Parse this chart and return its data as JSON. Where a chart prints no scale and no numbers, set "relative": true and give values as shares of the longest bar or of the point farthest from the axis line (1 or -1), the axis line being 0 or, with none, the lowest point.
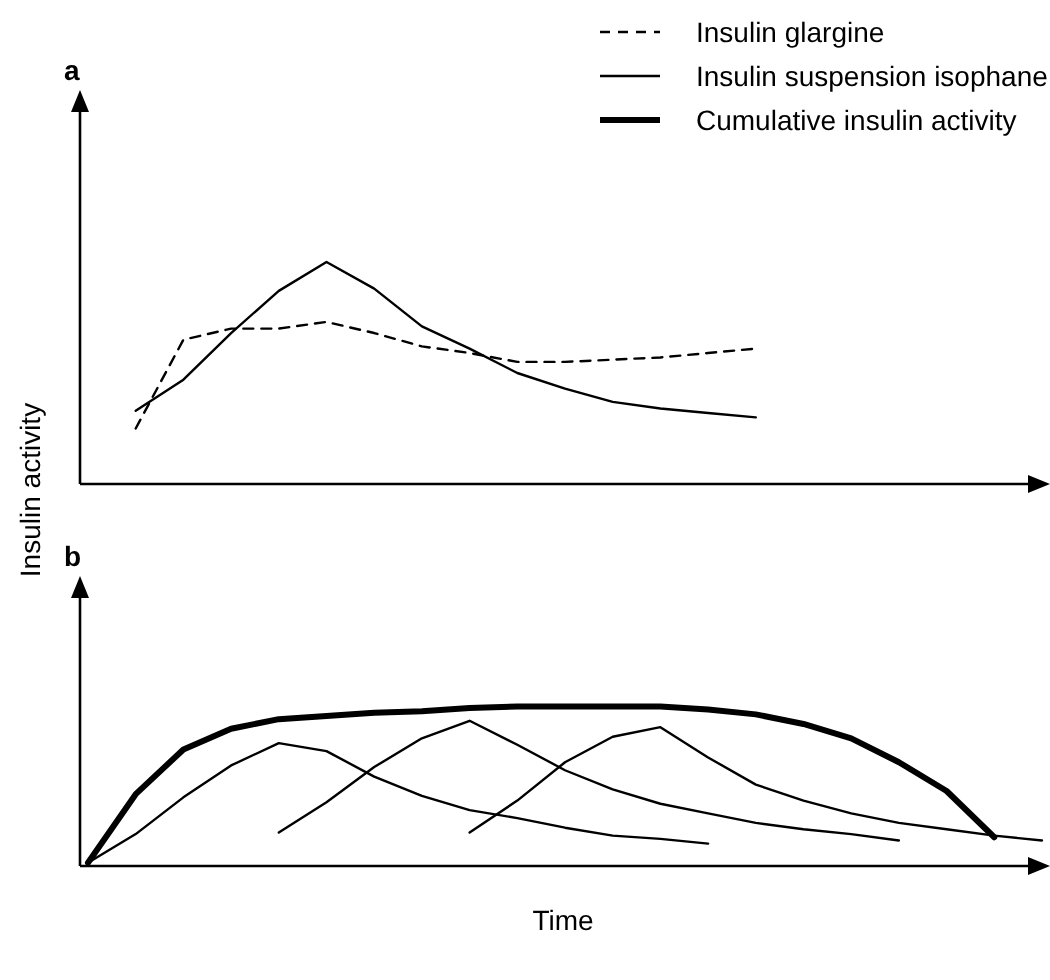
{
  "chart_data": [
    {
      "type": "line",
      "title": "a",
      "ylabel": "Insulin activity",
      "relative": true,
      "legend": "top right",
      "marker": "none",
      "categories": [
        null,
        null,
        null,
        null,
        null,
        null,
        null,
        null,
        null,
        null,
        null,
        null,
        null,
        null,
        null,
        null,
        null,
        null,
        null,
        null,
        null
      ],
      "series": [
        {
          "name": "Insulin glargine",
          "color": "#000000",
          "line_style": "dashed",
          "values": [
            null,
            0.25,
            0.65,
            0.7,
            0.7,
            0.73,
            0.68,
            0.62,
            0.59,
            0.55,
            0.55,
            0.56,
            0.57,
            0.59,
            0.61,
            null,
            null,
            null,
            null,
            null,
            null
          ]
        },
        {
          "name": "Insulin suspension isophane",
          "color": "#000000",
          "line_style": "solid",
          "values": [
            null,
            0.33,
            0.47,
            0.68,
            0.87,
            1,
            0.88,
            0.71,
            0.61,
            0.5,
            0.43,
            0.37,
            0.34,
            0.32,
            0.3,
            null,
            null,
            null,
            null,
            null,
            null
          ]
        }
      ]
    },
    {
      "type": "line",
      "title": "b",
      "xlabel": "Time",
      "relative": true,
      "legend": "top right",
      "marker": "none",
      "categories": [
        null,
        null,
        null,
        null,
        null,
        null,
        null,
        null,
        null,
        null,
        null,
        null,
        null,
        null,
        null,
        null,
        null,
        null,
        null,
        null,
        null
      ],
      "series": [
        {
          "name": "Cumulative insulin activity",
          "color": "#000000",
          "line_style": "solid",
          "values": [
            0.02,
            0.45,
            0.73,
            0.86,
            0.92,
            0.94,
            0.96,
            0.97,
            0.99,
            1,
            1,
            1,
            1,
            0.98,
            0.95,
            0.89,
            0.8,
            0.65,
            0.47,
            0.18,
            null
          ]
        },
        {
          "color": "#000000",
          "line_style": "solid",
          "values": [
            0.02,
            0.2,
            0.43,
            0.63,
            0.77,
            0.72,
            0.56,
            0.44,
            0.35,
            0.3,
            0.24,
            0.19,
            0.17,
            0.14,
            null,
            null,
            null,
            null,
            null,
            null,
            null
          ]
        },
        {
          "color": "#000000",
          "line_style": "solid",
          "values": [
            null,
            null,
            null,
            null,
            0.21,
            0.4,
            0.62,
            0.8,
            0.91,
            0.76,
            0.6,
            0.48,
            0.39,
            0.33,
            0.27,
            0.23,
            0.2,
            0.16,
            null,
            null,
            null
          ]
        },
        {
          "color": "#000000",
          "line_style": "solid",
          "values": [
            null,
            null,
            null,
            null,
            null,
            null,
            null,
            null,
            0.21,
            0.41,
            0.65,
            0.81,
            0.87,
            0.68,
            0.51,
            0.41,
            0.33,
            0.27,
            0.23,
            0.19,
            0.16
          ]
        }
      ]
    }
  ]
}
